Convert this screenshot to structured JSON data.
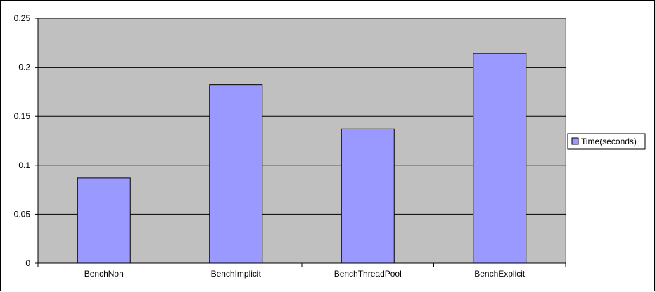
{
  "chart_data": {
    "type": "bar",
    "categories": [
      "BenchNon",
      "BenchImplicit",
      "BenchThreadPool",
      "BenchExplicit"
    ],
    "series": [
      {
        "name": "Time(seconds)",
        "values": [
          0.087,
          0.182,
          0.137,
          0.214
        ],
        "color": "#9999ff"
      }
    ],
    "title": "",
    "xlabel": "",
    "ylabel": "",
    "ylim": [
      0,
      0.25
    ],
    "yticks": [
      "0",
      "0.05",
      "0.1",
      "0.15",
      "0.2",
      "0.25"
    ],
    "grid": true,
    "legend_position": "right",
    "plot_background": "#c0c0c0"
  }
}
